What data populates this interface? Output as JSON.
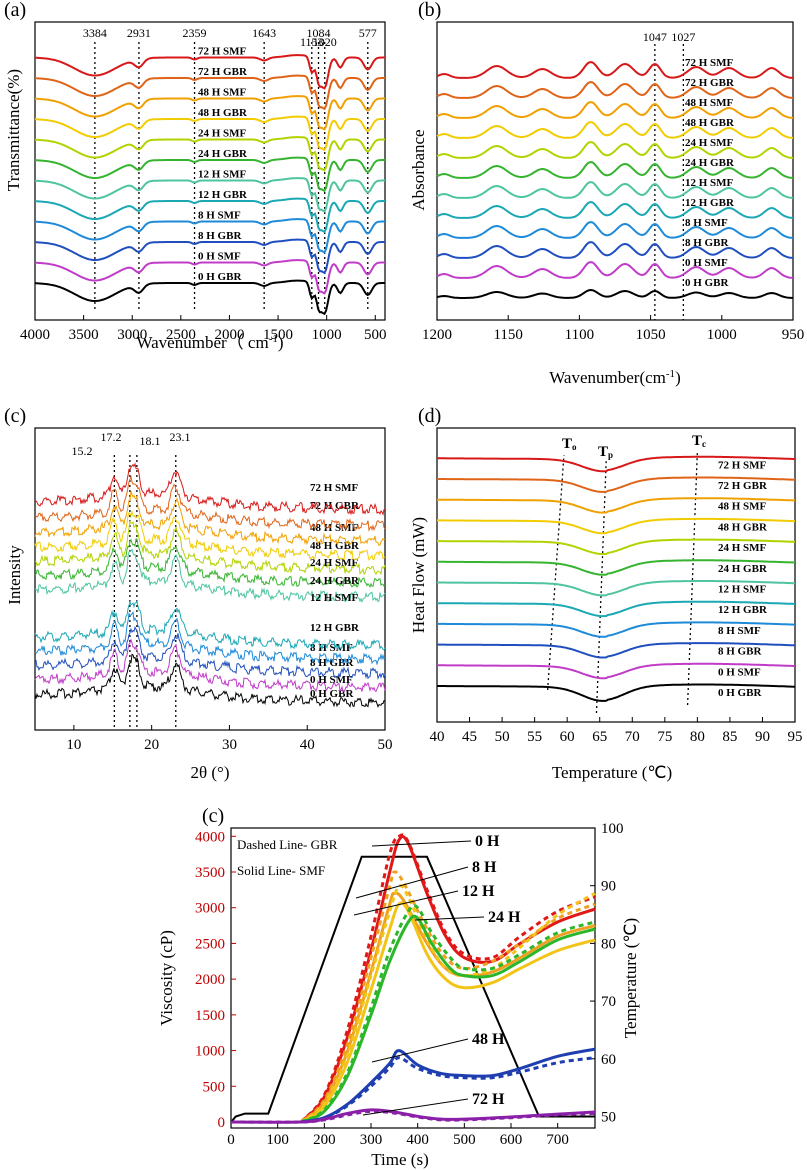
{
  "panels": [
    {
      "id": "a",
      "label": "(a)",
      "type": "line",
      "xlabel": "Wavenumber（ cm",
      "xlabel_sup": "-1",
      "xlabel_tail": ")",
      "ylabel": "Transmittance(%)",
      "xlim": [
        4000,
        400
      ],
      "reversed_x": true,
      "xticks": [
        "4000",
        "3500",
        "3000",
        "2500",
        "2000",
        "1500",
        "1000",
        "500"
      ],
      "xtick_values": [
        4000,
        3500,
        3000,
        2500,
        2000,
        1500,
        1000,
        500
      ],
      "peaks": [
        "3384",
        "2931",
        "2359",
        "1643",
        "1153",
        "1084",
        "1020",
        "577"
      ],
      "peak_values": [
        3384,
        2931,
        2359,
        1643,
        1153,
        1084,
        1020,
        577
      ],
      "series": [
        "0 H GBR",
        "0 H SMF",
        "8 H GBR",
        "8 H SMF",
        "12 H GBR",
        "12 H SMF",
        "24 H GBR",
        "24 H SMF",
        "48 H GBR",
        "48 H SMF",
        "72 H GBR",
        "72 H SMF"
      ]
    },
    {
      "id": "b",
      "label": "(b)",
      "type": "line",
      "xlabel": "Wavenumber(cm",
      "xlabel_sup": "-1",
      "xlabel_tail": ")",
      "ylabel": "Absorbance",
      "xlim": [
        1200,
        950
      ],
      "reversed_x": true,
      "xticks": [
        "1200",
        "1150",
        "1100",
        "1050",
        "1000",
        "950"
      ],
      "xtick_values": [
        1200,
        1150,
        1100,
        1050,
        1000,
        950
      ],
      "peaks": [
        "1047",
        "1027"
      ],
      "peak_values": [
        1047,
        1027
      ],
      "series": [
        "0 H GBR",
        "0 H SMF",
        "8 H GBR",
        "8 H SMF",
        "12 H GBR",
        "12 H SMF",
        "24 H GBR",
        "24 H SMF",
        "48 H GBR",
        "48 H SMF",
        "72 H GBR",
        "72 H SMF"
      ]
    },
    {
      "id": "c",
      "label": "(c)",
      "type": "line",
      "xlabel": "2θ (°)",
      "ylabel": "Intensity",
      "xlim": [
        5,
        50
      ],
      "xticks": [
        "10",
        "20",
        "30",
        "40",
        "50"
      ],
      "xtick_values": [
        10,
        20,
        30,
        40,
        50
      ],
      "peaks": [
        "15.2",
        "17.2",
        "18.1",
        "23.1"
      ],
      "peak_values": [
        15.2,
        17.2,
        18.1,
        23.1
      ],
      "series": [
        "0 H GBR",
        "0 H SMF",
        "8 H GBR",
        "8 H SMF",
        "12 H GBR",
        "12 H SMF",
        "24 H GBR",
        "24 H SMF",
        "48 H GBR",
        "48 H SMF",
        "72 H GBR",
        "72 H SMF"
      ]
    },
    {
      "id": "d",
      "label": "(d)",
      "type": "line",
      "xlabel": "Temperature (℃)",
      "ylabel": "Heat Flow (mW)",
      "xlim": [
        40,
        95
      ],
      "xticks": [
        "40",
        "45",
        "50",
        "55",
        "60",
        "65",
        "70",
        "75",
        "80",
        "85",
        "90",
        "95"
      ],
      "xtick_values": [
        40,
        45,
        50,
        55,
        60,
        65,
        70,
        75,
        80,
        85,
        90,
        95
      ],
      "markers": [
        "T",
        "T",
        "T"
      ],
      "marker_subs": [
        "o",
        "p",
        "c"
      ],
      "series": [
        "0 H GBR",
        "0 H SMF",
        "8 H GBR",
        "8 H SMF",
        "12 H GBR",
        "12 H SMF",
        "24 H GBR",
        "24 H SMF",
        "48 H GBR",
        "48 H SMF",
        "72 H GBR",
        "72 H SMF"
      ]
    }
  ],
  "series_colors": [
    "#000000",
    "#c03cc8",
    "#1f4fbf",
    "#1e8ad8",
    "#1aa8b4",
    "#4ec4a0",
    "#36b430",
    "#b4d200",
    "#f2cc00",
    "#f0a000",
    "#e06418",
    "#d81818"
  ],
  "viscosity": {
    "label": "(c)",
    "xlabel": "Time (s)",
    "ylabel": "Viscosity (cP)",
    "y2label": "Temperature (℃)",
    "legend_dashed": "Dashed Line- GBR",
    "legend_solid": "Solid Line- SMF",
    "xticks": [
      "0",
      "100",
      "200",
      "300",
      "400",
      "500",
      "600",
      "700"
    ],
    "xtick_values": [
      0,
      100,
      200,
      300,
      400,
      500,
      600,
      700
    ],
    "yticks": [
      "0",
      "500",
      "1000",
      "1500",
      "2000",
      "2500",
      "3000",
      "3500",
      "4000"
    ],
    "ytick_values": [
      0,
      500,
      1000,
      1500,
      2000,
      2500,
      3000,
      3500,
      4000
    ],
    "y2ticks": [
      "50",
      "60",
      "70",
      "80",
      "90",
      "100"
    ],
    "y2tick_values": [
      50,
      60,
      70,
      80,
      90,
      100
    ],
    "annotations": [
      "0 H",
      "8 H",
      "12 H",
      "24 H",
      "48 H",
      "72 H"
    ],
    "colors": {
      "axis_left": "#c00000",
      "temp_line": "#000000"
    }
  },
  "chart_data": [
    {
      "type": "line",
      "title": "(a)",
      "xlabel": "Wavenumber（cm-1）",
      "ylabel": "Transmittance(%)",
      "xlim": [
        4000,
        400
      ],
      "series": [
        {
          "name": "0 H GBR"
        },
        {
          "name": "0 H SMF"
        },
        {
          "name": "8 H GBR"
        },
        {
          "name": "8 H SMF"
        },
        {
          "name": "12 H GBR"
        },
        {
          "name": "12 H SMF"
        },
        {
          "name": "24 H GBR"
        },
        {
          "name": "24 H SMF"
        },
        {
          "name": "48 H GBR"
        },
        {
          "name": "48 H SMF"
        },
        {
          "name": "72 H GBR"
        },
        {
          "name": "72 H SMF"
        }
      ],
      "annotations": [
        3384,
        2931,
        2359,
        1643,
        1153,
        1084,
        1020,
        577
      ]
    },
    {
      "type": "line",
      "title": "(b)",
      "xlabel": "Wavenumber(cm-1)",
      "ylabel": "Absorbance",
      "xlim": [
        1200,
        950
      ],
      "annotations": [
        1047,
        1027
      ]
    },
    {
      "type": "line",
      "title": "(c)",
      "xlabel": "2θ (°)",
      "ylabel": "Intensity",
      "xlim": [
        5,
        50
      ],
      "annotations": [
        15.2,
        17.2,
        18.1,
        23.1
      ]
    },
    {
      "type": "line",
      "title": "(d)",
      "xlabel": "Temperature (℃)",
      "ylabel": "Heat Flow (mW)",
      "xlim": [
        40,
        95
      ],
      "markers": {
        "To": 57,
        "Tp": 65,
        "Tc": 80
      }
    },
    {
      "type": "line",
      "title": "(c)",
      "xlabel": "Time (s)",
      "ylabel": "Viscosity (cP)",
      "y2label": "Temperature (℃)",
      "xlim": [
        0,
        780
      ],
      "ylim": [
        0,
        4200
      ],
      "y2lim": [
        48,
        100
      ],
      "series": [
        {
          "name": "Temperature",
          "axis": "y2",
          "x": [
            0,
            10,
            30,
            60,
            80,
            280,
            420,
            660,
            700,
            780
          ],
          "values": [
            49,
            50,
            50.5,
            50.5,
            50.5,
            95,
            95,
            50,
            50,
            50
          ]
        },
        {
          "name": "0 H SMF",
          "x": [
            150,
            200,
            250,
            300,
            340,
            360,
            380,
            420,
            460,
            500,
            560,
            620,
            700,
            780
          ],
          "values": [
            0,
            350,
            1200,
            2400,
            3500,
            3950,
            3900,
            3200,
            2600,
            2300,
            2250,
            2500,
            2800,
            2980
          ]
        },
        {
          "name": "0 H GBR",
          "x": [
            150,
            200,
            250,
            300,
            340,
            360,
            380,
            420,
            460,
            500,
            560,
            620,
            700,
            780
          ],
          "values": [
            0,
            380,
            1300,
            2600,
            3750,
            4000,
            3920,
            3250,
            2650,
            2350,
            2300,
            2600,
            2950,
            3150
          ]
        },
        {
          "name": "8 H SMF",
          "x": [
            150,
            200,
            250,
            300,
            340,
            350,
            370,
            420,
            460,
            500,
            560,
            620,
            700,
            780
          ],
          "values": [
            0,
            280,
            1000,
            2100,
            3050,
            3200,
            3100,
            2500,
            2150,
            2050,
            2100,
            2300,
            2600,
            2750
          ]
        },
        {
          "name": "8 H GBR",
          "x": [
            150,
            200,
            250,
            300,
            340,
            350,
            370,
            420,
            460,
            500,
            560,
            620,
            700,
            780
          ],
          "values": [
            0,
            310,
            1100,
            2300,
            3300,
            3500,
            3350,
            2700,
            2300,
            2150,
            2250,
            2500,
            2850,
            3050
          ]
        },
        {
          "name": "12 H SMF",
          "x": [
            150,
            200,
            250,
            300,
            340,
            360,
            380,
            420,
            460,
            500,
            560,
            620,
            700,
            780
          ],
          "values": [
            0,
            220,
            850,
            1850,
            2700,
            3050,
            2950,
            2350,
            2000,
            1880,
            1950,
            2150,
            2400,
            2550
          ]
        },
        {
          "name": "12 H GBR",
          "x": [
            150,
            200,
            250,
            300,
            340,
            360,
            380,
            420,
            460,
            500,
            560,
            620,
            700,
            780
          ],
          "values": [
            0,
            260,
            950,
            2050,
            2950,
            3300,
            3150,
            2550,
            2150,
            2050,
            2150,
            2450,
            2900,
            3200
          ]
        },
        {
          "name": "24 H SMF",
          "x": [
            150,
            200,
            250,
            300,
            340,
            380,
            400,
            430,
            470,
            500,
            560,
            620,
            700,
            780
          ],
          "values": [
            0,
            150,
            650,
            1500,
            2250,
            2800,
            2850,
            2500,
            2150,
            2050,
            2050,
            2250,
            2550,
            2700
          ]
        },
        {
          "name": "24 H GBR",
          "x": [
            150,
            200,
            250,
            300,
            340,
            380,
            400,
            430,
            470,
            500,
            560,
            620,
            700,
            780
          ],
          "values": [
            0,
            170,
            700,
            1600,
            2400,
            2950,
            3000,
            2650,
            2300,
            2150,
            2150,
            2350,
            2650,
            2800
          ]
        },
        {
          "name": "48 H SMF",
          "x": [
            150,
            200,
            250,
            300,
            340,
            360,
            400,
            450,
            500,
            560,
            620,
            700,
            780
          ],
          "values": [
            0,
            60,
            250,
            550,
            820,
            1000,
            800,
            680,
            650,
            650,
            750,
            920,
            1020
          ]
        },
        {
          "name": "48 H GBR",
          "x": [
            150,
            200,
            250,
            300,
            340,
            360,
            400,
            450,
            500,
            560,
            620,
            700,
            780
          ],
          "values": [
            0,
            55,
            230,
            500,
            760,
            900,
            750,
            650,
            620,
            620,
            700,
            830,
            900
          ]
        },
        {
          "name": "72 H SMF",
          "x": [
            0,
            150,
            200,
            250,
            300,
            350,
            400,
            450,
            500,
            600,
            700,
            780
          ],
          "values": [
            0,
            0,
            40,
            120,
            170,
            140,
            80,
            40,
            40,
            70,
            110,
            140
          ]
        },
        {
          "name": "72 H GBR",
          "x": [
            0,
            150,
            200,
            250,
            300,
            350,
            400,
            450,
            500,
            600,
            700,
            780
          ],
          "values": [
            0,
            0,
            30,
            100,
            150,
            125,
            70,
            30,
            30,
            60,
            100,
            120
          ]
        }
      ]
    }
  ]
}
